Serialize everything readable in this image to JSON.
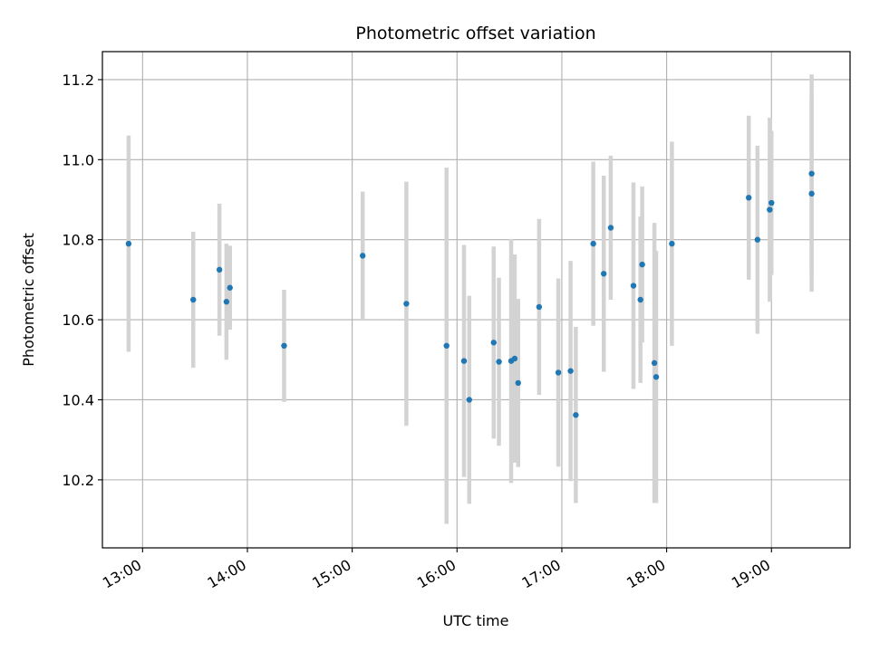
{
  "chart_data": {
    "type": "scatter",
    "title": "Photometric offset variation",
    "xlabel": "UTC time",
    "ylabel": "Photometric offset",
    "x_axis_type": "time",
    "xlim": [
      "12:37",
      "19:45"
    ],
    "ylim": [
      10.03,
      11.27
    ],
    "xticks": [
      "13:00",
      "14:00",
      "15:00",
      "16:00",
      "17:00",
      "18:00",
      "19:00"
    ],
    "yticks": [
      10.2,
      10.4,
      10.6,
      10.8,
      11.0,
      11.2
    ],
    "grid": true,
    "error_bars": true,
    "colors": {
      "marker": "#1f77b4",
      "errorbar": "#d3d3d3",
      "grid": "#b0b0b0"
    },
    "points": [
      {
        "x": "12:52",
        "y": 10.79,
        "err": 0.27
      },
      {
        "x": "13:29",
        "y": 10.65,
        "err": 0.17
      },
      {
        "x": "13:44",
        "y": 10.725,
        "err": 0.165
      },
      {
        "x": "13:48",
        "y": 10.645,
        "err": 0.145
      },
      {
        "x": "13:50",
        "y": 10.68,
        "err": 0.105
      },
      {
        "x": "14:21",
        "y": 10.535,
        "err": 0.14
      },
      {
        "x": "15:06",
        "y": 10.76,
        "err": 0.16
      },
      {
        "x": "15:31",
        "y": 10.64,
        "err": 0.305
      },
      {
        "x": "15:54",
        "y": 10.535,
        "err": 0.445
      },
      {
        "x": "16:04",
        "y": 10.497,
        "err": 0.29
      },
      {
        "x": "16:07",
        "y": 10.4,
        "err": 0.26
      },
      {
        "x": "16:21",
        "y": 10.543,
        "err": 0.24
      },
      {
        "x": "16:24",
        "y": 10.495,
        "err": 0.21
      },
      {
        "x": "16:31",
        "y": 10.497,
        "err": 0.305
      },
      {
        "x": "16:33",
        "y": 10.503,
        "err": 0.26
      },
      {
        "x": "16:35",
        "y": 10.442,
        "err": 0.21
      },
      {
        "x": "16:47",
        "y": 10.632,
        "err": 0.22
      },
      {
        "x": "16:58",
        "y": 10.468,
        "err": 0.235
      },
      {
        "x": "17:05",
        "y": 10.472,
        "err": 0.275
      },
      {
        "x": "17:08",
        "y": 10.362,
        "err": 0.22
      },
      {
        "x": "17:18",
        "y": 10.79,
        "err": 0.205
      },
      {
        "x": "17:24",
        "y": 10.715,
        "err": 0.245
      },
      {
        "x": "17:28",
        "y": 10.83,
        "err": 0.18
      },
      {
        "x": "17:41",
        "y": 10.685,
        "err": 0.258
      },
      {
        "x": "17:45",
        "y": 10.65,
        "err": 0.208
      },
      {
        "x": "17:46",
        "y": 10.738,
        "err": 0.195
      },
      {
        "x": "17:53",
        "y": 10.492,
        "err": 0.35
      },
      {
        "x": "17:54",
        "y": 10.457,
        "err": 0.315
      },
      {
        "x": "18:03",
        "y": 10.79,
        "err": 0.255
      },
      {
        "x": "18:47",
        "y": 10.905,
        "err": 0.205
      },
      {
        "x": "18:52",
        "y": 10.8,
        "err": 0.235
      },
      {
        "x": "18:59",
        "y": 10.875,
        "err": 0.23
      },
      {
        "x": "19:00",
        "y": 10.892,
        "err": 0.18
      },
      {
        "x": "19:23",
        "y": 10.915,
        "err": 0.245
      },
      {
        "x": "19:23",
        "y": 10.965,
        "err": 0.248
      }
    ]
  }
}
